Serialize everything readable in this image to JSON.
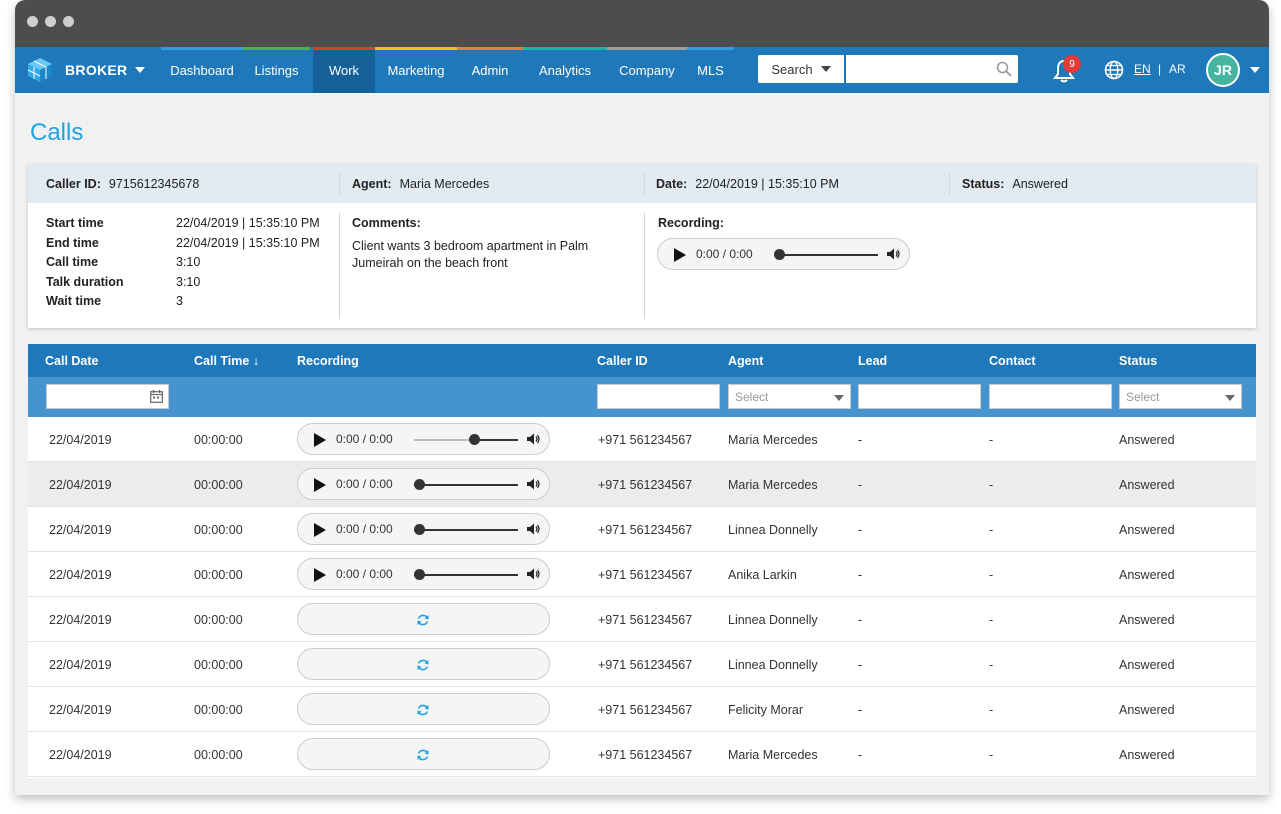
{
  "brand": {
    "name": "BROKER"
  },
  "nav": {
    "items": [
      {
        "label": "Dashboard",
        "color": "#2d9ee0"
      },
      {
        "label": "Listings",
        "color": "#4caf50"
      },
      {
        "label": "Work",
        "color": "#e53935",
        "active": true
      },
      {
        "label": "Marketing",
        "color": "#f6c200"
      },
      {
        "label": "Admin",
        "color": "#ef7d32"
      },
      {
        "label": "Analytics",
        "color": "#1ab3a8"
      },
      {
        "label": "Company",
        "color": "#9e9e9e"
      },
      {
        "label": "MLS",
        "color": "#2d9ee0"
      }
    ]
  },
  "search": {
    "select_label": "Search",
    "placeholder": ""
  },
  "notifications": {
    "count": "9"
  },
  "language": {
    "en": "EN",
    "separator": "|",
    "ar": "AR"
  },
  "user": {
    "initials": "JR"
  },
  "page": {
    "title": "Calls"
  },
  "detail": {
    "caller_id_label": "Caller ID:",
    "caller_id": "9715612345678",
    "agent_label": "Agent:",
    "agent": "Maria Mercedes",
    "date_label": "Date:",
    "date": "22/04/2019 | 15:35:10 PM",
    "status_label": "Status:",
    "status": "Answered",
    "fields": [
      {
        "key": "Start time",
        "value": "22/04/2019 | 15:35:10 PM"
      },
      {
        "key": "End time",
        "value": "22/04/2019 | 15:35:10 PM"
      },
      {
        "key": "Call time",
        "value": "3:10"
      },
      {
        "key": "Talk duration",
        "value": "3:10"
      },
      {
        "key": "Wait time",
        "value": "3"
      }
    ],
    "comments_label": "Comments:",
    "comments": "Client wants 3 bedroom apartment in Palm Jumeirah on the beach front",
    "recording_label": "Recording:",
    "recording_time": "0:00 / 0:00"
  },
  "table": {
    "columns": [
      "Call Date",
      "Call Time ↓",
      "Recording",
      "Caller ID",
      "Agent",
      "Lead",
      "Contact",
      "Status"
    ],
    "filters": {
      "agent_placeholder": "Select",
      "status_placeholder": "Select"
    },
    "rows": [
      {
        "date": "22/04/2019",
        "time": "00:00:00",
        "recording": "player",
        "rec_time": "0:00 / 0:00",
        "progress": 0.55,
        "caller_id": "+971 561234567",
        "agent": "Maria Mercedes",
        "lead": "-",
        "contact": "-",
        "status": "Answered"
      },
      {
        "date": "22/04/2019",
        "time": "00:00:00",
        "recording": "player",
        "rec_time": "0:00 / 0:00",
        "progress": 0,
        "caller_id": "+971 561234567",
        "agent": "Maria Mercedes",
        "lead": "-",
        "contact": "-",
        "status": "Answered"
      },
      {
        "date": "22/04/2019",
        "time": "00:00:00",
        "recording": "player",
        "rec_time": "0:00 / 0:00",
        "progress": 0,
        "caller_id": "+971 561234567",
        "agent": "Linnea Donnelly",
        "lead": "-",
        "contact": "-",
        "status": "Answered"
      },
      {
        "date": "22/04/2019",
        "time": "00:00:00",
        "recording": "player",
        "rec_time": "0:00 / 0:00",
        "progress": 0,
        "caller_id": "+971 561234567",
        "agent": " Anika Larkin",
        "lead": "-",
        "contact": "-",
        "status": "Answered"
      },
      {
        "date": "22/04/2019",
        "time": "00:00:00",
        "recording": "loading",
        "caller_id": "+971 561234567",
        "agent": "Linnea Donnelly",
        "lead": "-",
        "contact": "-",
        "status": "Answered"
      },
      {
        "date": "22/04/2019",
        "time": "00:00:00",
        "recording": "loading",
        "caller_id": "+971 561234567",
        "agent": "Linnea Donnelly",
        "lead": "-",
        "contact": "-",
        "status": "Answered"
      },
      {
        "date": "22/04/2019",
        "time": "00:00:00",
        "recording": "loading",
        "caller_id": "+971 561234567",
        "agent": " Felicity Morar",
        "lead": "-",
        "contact": "-",
        "status": "Answered"
      },
      {
        "date": "22/04/2019",
        "time": "00:00:00",
        "recording": "loading",
        "caller_id": "+971 561234567",
        "agent": "Maria Mercedes",
        "lead": "-",
        "contact": "-",
        "status": "Answered"
      }
    ]
  },
  "icons": {
    "logo": "cube-logo-icon",
    "search": "search-icon",
    "bell": "bell-icon",
    "globe": "globe-icon",
    "calendar": "calendar-icon",
    "play": "play-icon",
    "volume": "volume-icon",
    "reload": "reload-icon"
  }
}
